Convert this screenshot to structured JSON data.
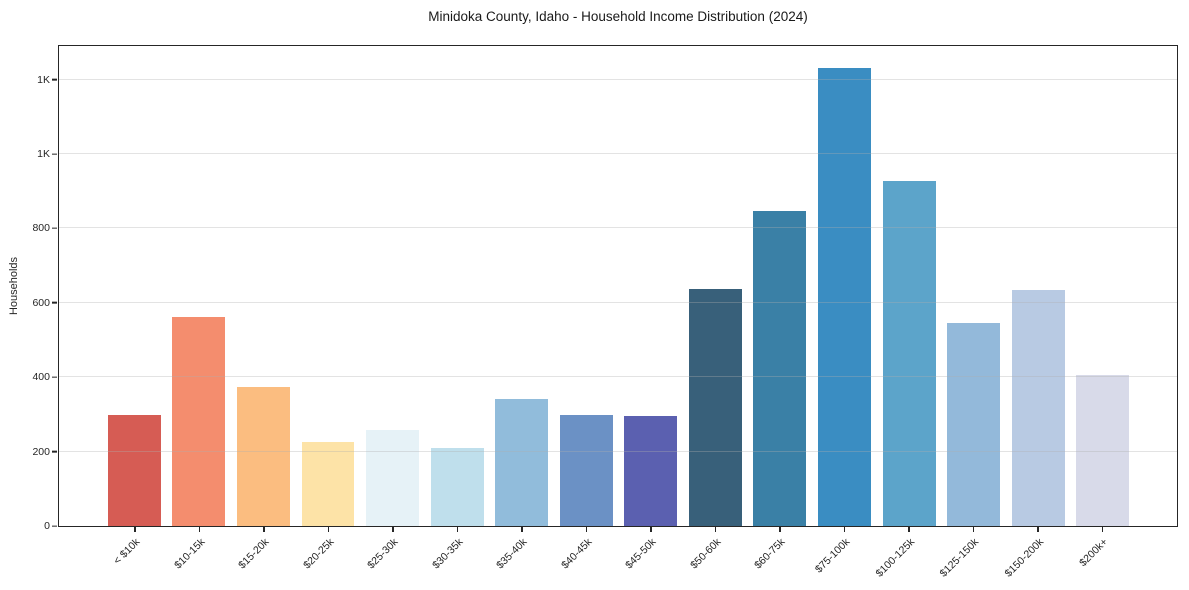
{
  "chart_data": {
    "type": "bar",
    "title": "Minidoka County, Idaho - Household Income Distribution (2024)",
    "ylabel": "Households",
    "xlabel": "",
    "categories": [
      "< $10k",
      "$10-15k",
      "$15-20k",
      "$20-25k",
      "$25-30k",
      "$30-35k",
      "$35-40k",
      "$40-45k",
      "$45-50k",
      "$50-60k",
      "$60-75k",
      "$75-100k",
      "$100-125k",
      "$125-150k",
      "$150-200k",
      "$200k+"
    ],
    "values": [
      298,
      562,
      373,
      225,
      258,
      211,
      341,
      298,
      296,
      636,
      847,
      1230,
      928,
      546,
      635,
      407
    ],
    "bar_colors": [
      "#d65c54",
      "#f48d6e",
      "#fbbd80",
      "#fde3a7",
      "#e6f2f7",
      "#bfdfec",
      "#91bcdb",
      "#6b91c5",
      "#5b60b0",
      "#38607a",
      "#3a80a6",
      "#3a8dc2",
      "#5ca4ca",
      "#93b9da",
      "#b8cae3",
      "#d8dae9"
    ],
    "yticks": [
      {
        "value": 0,
        "label": "0"
      },
      {
        "value": 200,
        "label": "200"
      },
      {
        "value": 400,
        "label": "400"
      },
      {
        "value": 600,
        "label": "600"
      },
      {
        "value": 800,
        "label": "800"
      },
      {
        "value": 1000,
        "label": "1K"
      },
      {
        "value": 1200,
        "label": "1K"
      }
    ],
    "ylim": [
      0,
      1290
    ],
    "grid": "horizontal-only",
    "legend": "none",
    "colors": {
      "background": "#ffffff",
      "frame": "#262626",
      "gridline": "#b0b0b0",
      "text": "#262626"
    }
  }
}
